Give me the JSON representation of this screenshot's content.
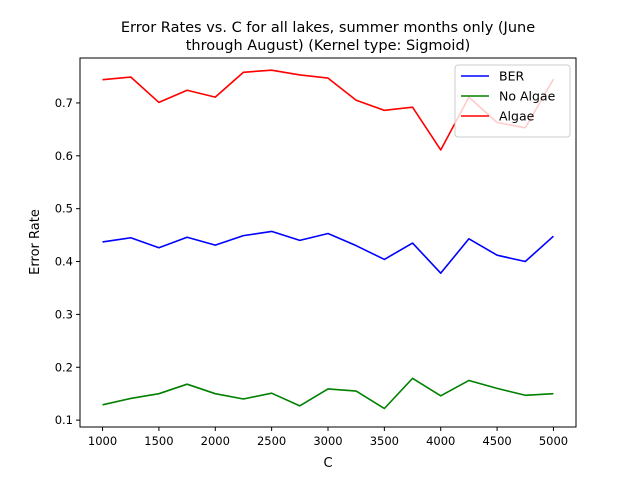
{
  "chart_data": {
    "type": "line",
    "title_line1": "Error Rates vs. C for all lakes, summer months only (June",
    "title_line2": "through August) (Kernel type: Sigmoid)",
    "xlabel": "C",
    "ylabel": "Error Rate",
    "xlim": [
      800,
      5200
    ],
    "ylim": [
      0.087,
      0.785
    ],
    "xticks": [
      1000,
      1500,
      2000,
      2500,
      3000,
      3500,
      4000,
      4500,
      5000
    ],
    "yticks": [
      0.1,
      0.2,
      0.3,
      0.4,
      0.5,
      0.6,
      0.7
    ],
    "grid": false,
    "legend_position": "top-right",
    "x": [
      1000,
      1250,
      1500,
      1750,
      2000,
      2250,
      2500,
      2750,
      3000,
      3250,
      3500,
      3750,
      4000,
      4250,
      4500,
      4750,
      5000
    ],
    "series": [
      {
        "name": "BER",
        "color": "#0000ff",
        "values": [
          0.437,
          0.445,
          0.426,
          0.446,
          0.431,
          0.449,
          0.457,
          0.44,
          0.453,
          0.43,
          0.404,
          0.435,
          0.378,
          0.443,
          0.412,
          0.4,
          0.448
        ]
      },
      {
        "name": "No Algae",
        "color": "#008000",
        "values": [
          0.129,
          0.141,
          0.15,
          0.168,
          0.15,
          0.14,
          0.151,
          0.127,
          0.159,
          0.155,
          0.122,
          0.179,
          0.146,
          0.175,
          0.16,
          0.147,
          0.15
        ]
      },
      {
        "name": "Algae",
        "color": "#ff0000",
        "values": [
          0.744,
          0.749,
          0.701,
          0.724,
          0.711,
          0.758,
          0.762,
          0.753,
          0.747,
          0.705,
          0.686,
          0.692,
          0.611,
          0.711,
          0.663,
          0.653,
          0.745
        ]
      }
    ]
  }
}
